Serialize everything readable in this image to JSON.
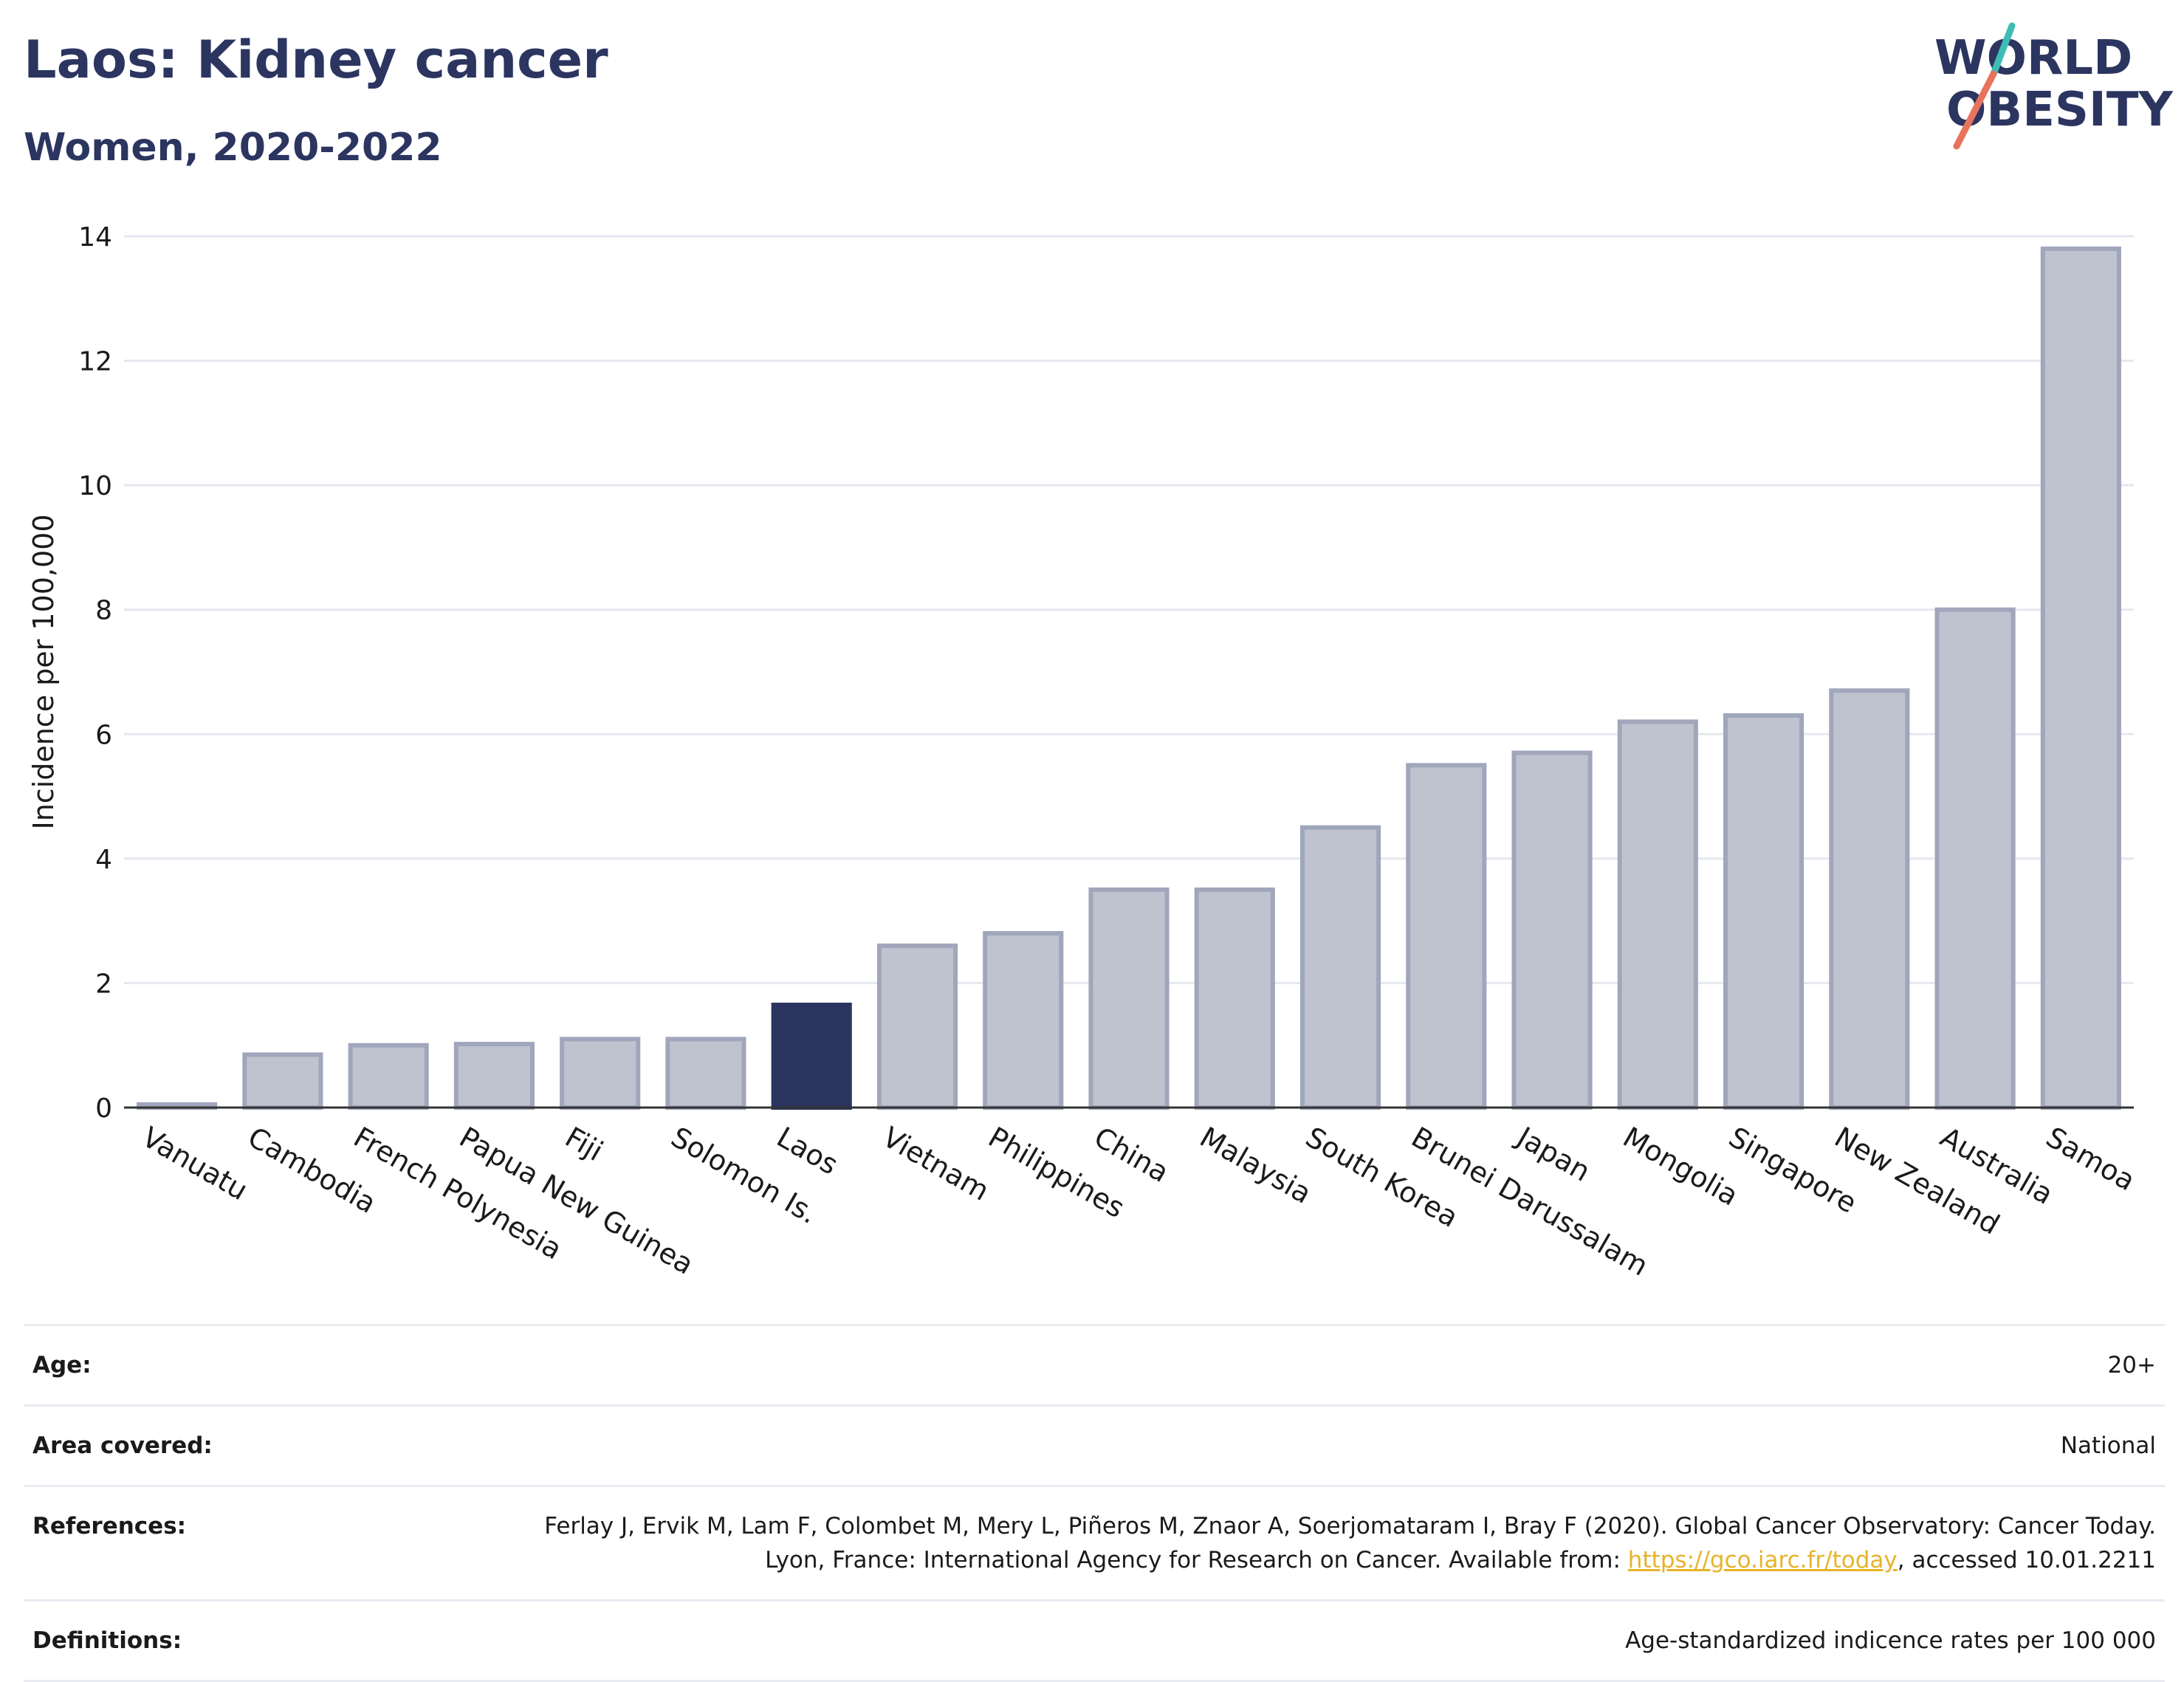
{
  "header": {
    "title": "Laos: Kidney cancer",
    "subtitle": "Women, 2020-2022",
    "logo_line1": "WORLD",
    "logo_line2": "OBESITY"
  },
  "chart_data": {
    "type": "bar",
    "categories": [
      "Vanuatu",
      "Cambodia",
      "French Polynesia",
      "Papua New Guinea",
      "Fiji",
      "Solomon Is.",
      "Laos",
      "Vietnam",
      "Philippines",
      "China",
      "Malaysia",
      "South Korea",
      "Brunei Darussalam",
      "Japan",
      "Mongolia",
      "Singapore",
      "New Zealand",
      "Australia",
      "Samoa"
    ],
    "values": [
      0.05,
      0.85,
      1.0,
      1.02,
      1.1,
      1.1,
      1.65,
      2.6,
      2.8,
      3.5,
      3.5,
      4.5,
      5.5,
      5.7,
      6.2,
      6.3,
      6.7,
      8.0,
      13.8
    ],
    "highlight": "Laos",
    "ylabel": "Incidence per 100,000",
    "ylim": [
      0,
      14
    ],
    "yticks": [
      0,
      2,
      4,
      6,
      8,
      10,
      12,
      14
    ],
    "grid": true,
    "colors": {
      "bar": "#bfc3cf",
      "bar_outline": "#a0a6bb",
      "highlight": "#2b3560",
      "grid": "#e6e8ef",
      "axis": "#333333"
    }
  },
  "meta": {
    "age_label": "Age:",
    "age_value": "20+",
    "area_label": "Area covered:",
    "area_value": "National",
    "ref_label": "References:",
    "ref_text_1": "Ferlay J, Ervik M, Lam F, Colombet M, Mery L, Piñeros M, Znaor A, Soerjomataram I, Bray F (2020). Global Cancer Observatory: Cancer Today. Lyon, France: International Agency for Research on Cancer. Available from: ",
    "ref_link": "https://gco.iarc.fr/today",
    "ref_text_2": ", accessed 10.01.2211",
    "def_label": "Definitions:",
    "def_value": "Age-standardized indicence rates per 100 000"
  }
}
